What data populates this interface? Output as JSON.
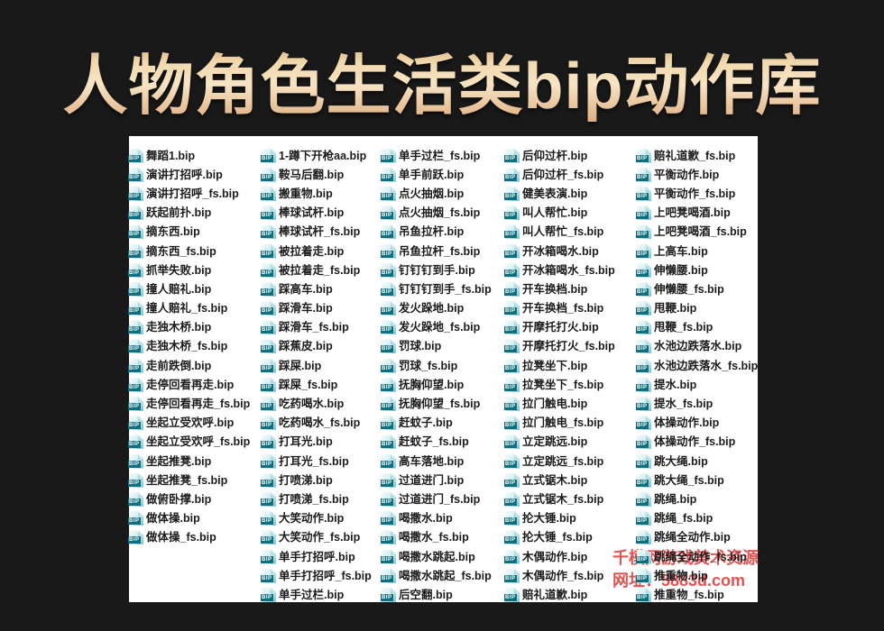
{
  "page": {
    "background_color": "#191919",
    "panel_color": "#ffffff"
  },
  "title": {
    "text": "人物角色生活类bip动作库",
    "gradient_top": "#c89668",
    "gradient_mid": "#f7e4c4",
    "gradient_bottom": "#dca677"
  },
  "file_list": {
    "icon_badge": "BIP",
    "icon_name": "bip-file-icon",
    "icon_color_dark": "#0f6f7e",
    "icon_color_light": "#d6f0f3",
    "columns": [
      [
        "1-蹲下开枪aa.bip",
        "鞍马后翻.bip",
        "搬重物.bip",
        "棒球试杆.bip",
        "棒球试杆_fs.bip",
        "被拉着走.bip",
        "被拉着走_fs.bip",
        "踩高车.bip",
        "踩滑车.bip",
        "踩滑车_fs.bip",
        "踩蕉皮.bip",
        "踩屎.bip",
        "踩屎_fs.bip",
        "吃药喝水.bip",
        "吃药喝水_fs.bip",
        "打耳光.bip",
        "打耳光_fs.bip",
        "打喷涕.bip",
        "打喷涕_fs.bip",
        "大笑动作.bip",
        "大笑动作_fs.bip",
        "单手打招呼.bip",
        "单手打招呼_fs.bip",
        "单手过栏.bip"
      ],
      [
        "单手过栏_fs.bip",
        "单手前跃.bip",
        "点火抽烟.bip",
        "点火抽烟_fs.bip",
        "吊鱼拉杆.bip",
        "吊鱼拉杆_fs.bip",
        "钉钉钉到手.bip",
        "钉钉钉到手_fs.bip",
        "发火跺地.bip",
        "发火跺地_fs.bip",
        "罚球.bip",
        "罚球_fs.bip",
        "抚胸仰望.bip",
        "抚胸仰望_fs.bip",
        "赶蚊子.bip",
        "赶蚊子_fs.bip",
        "高车落地.bip",
        "过道进门.bip",
        "过道进门_fs.bip",
        "喝撒水.bip",
        "喝撒水_fs.bip",
        "喝撒水跳起.bip",
        "喝撒水跳起_fs.bip",
        "后空翻.bip"
      ],
      [
        "后仰过杆.bip",
        "后仰过杆_fs.bip",
        "健美表演.bip",
        "叫人帮忙.bip",
        "叫人帮忙_fs.bip",
        "开冰箱喝水.bip",
        "开冰箱喝水_fs.bip",
        "开车换档.bip",
        "开车换档_fs.bip",
        "开摩托打火.bip",
        "开摩托打火_fs.bip",
        "拉凳坐下.bip",
        "拉凳坐下_fs.bip",
        "拉门触电.bip",
        "拉门触电_fs.bip",
        "立定跳远.bip",
        "立定跳远_fs.bip",
        "立式锯木.bip",
        "立式锯木_fs.bip",
        "抡大锤.bip",
        "抡大锤_fs.bip",
        "木偶动作.bip",
        "木偶动作_fs.bip",
        "赔礼道歉.bip"
      ],
      [
        "赔礼道歉_fs.bip",
        "平衡动作.bip",
        "平衡动作_fs.bip",
        "上吧凳喝酒.bip",
        "上吧凳喝酒_fs.bip",
        "上高车.bip",
        "伸懒腰.bip",
        "伸懒腰_fs.bip",
        "甩鞭.bip",
        "甩鞭_fs.bip",
        "水池边跌落水.bip",
        "水池边跌落水_fs.bip",
        "提水.bip",
        "提水_fs.bip",
        "体操动作.bip",
        "体操动作_fs.bip",
        "跳大绳.bip",
        "跳大绳_fs.bip",
        "跳绳.bip",
        "跳绳_fs.bip",
        "跳绳全动作.bip",
        "跳绳全动作_fs.bip",
        "推重物.bip",
        "推重物_fs.bip"
      ],
      [
        "舞蹈1.bip",
        "演讲打招呼.bip",
        "演讲打招呼_fs.bip",
        "跃起前扑.bip",
        "摘东西.bip",
        "摘东西_fs.bip",
        "抓举失败.bip",
        "撞人赔礼.bip",
        "撞人赔礼_fs.bip",
        "走独木桥.bip",
        "走独木桥_fs.bip",
        "走前跌倒.bip",
        "走停回看再走.bip",
        "走停回看再走_fs.bip",
        "坐起立受欢呼.bip",
        "坐起立受欢呼_fs.bip",
        "坐起推凳.bip",
        "坐起推凳_fs.bip",
        "做俯卧撑.bip",
        "做体操.bip",
        "做体操_fs.bip"
      ]
    ]
  },
  "watermark": {
    "line1": "千模网游戏美术资源",
    "line2": "网址：5883d.com",
    "color": "#e05353"
  }
}
